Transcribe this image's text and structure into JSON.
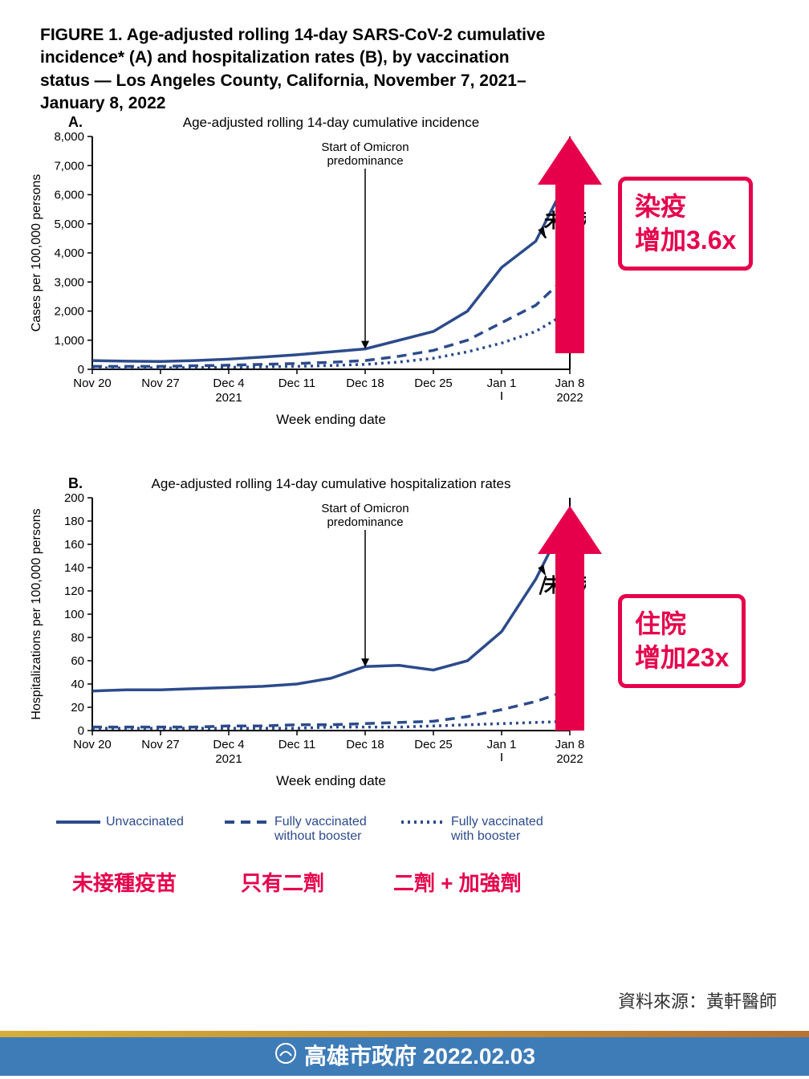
{
  "title": "FIGURE 1. Age-adjusted rolling 14-day SARS-CoV-2 cumulative incidence* (A) and hospitalization rates (B), by vaccination status — Los Angeles County, California, November 7, 2021–January 8, 2022",
  "chartA": {
    "label": "A.",
    "subtitle": "Age-adjusted rolling 14-day cumulative incidence",
    "ylabel": "Cases per 100,000 persons",
    "xlabel": "Week ending date",
    "yticks": [
      0,
      1000,
      2000,
      3000,
      4000,
      5000,
      6000,
      7000,
      8000
    ],
    "ytick_labels": [
      "0",
      "1,000",
      "2,000",
      "3,000",
      "4,000",
      "5,000",
      "6,000",
      "7,000",
      "8,000"
    ],
    "xticks": [
      "Nov 20",
      "Nov 27",
      "Dec 4",
      "Dec 11",
      "Dec 18",
      "Dec 25",
      "Jan 1",
      "Jan 8"
    ],
    "x_year_2021": "2021",
    "x_year_2022": "2022",
    "annotation": "Start of Omicron\npredominance",
    "ann_label": "未接種",
    "series": {
      "unvac": [
        300,
        280,
        270,
        300,
        350,
        420,
        500,
        600,
        700,
        1000,
        1300,
        2000,
        3500,
        4400,
        6700
      ],
      "noboost": [
        100,
        100,
        100,
        120,
        140,
        170,
        200,
        240,
        300,
        450,
        650,
        1000,
        1600,
        2200,
        3300
      ],
      "boost": [
        50,
        50,
        50,
        60,
        70,
        85,
        100,
        130,
        170,
        250,
        380,
        600,
        900,
        1300,
        2000
      ]
    },
    "colors": {
      "line": "#2c4b8c",
      "axis": "#000",
      "bg": "#fff"
    },
    "line_width": 3.5
  },
  "chartB": {
    "label": "B.",
    "subtitle": "Age-adjusted rolling 14-day cumulative hospitalization rates",
    "ylabel": "Hospitalizations per 100,000 persons",
    "xlabel": "Week ending date",
    "yticks": [
      0,
      20,
      40,
      60,
      80,
      100,
      120,
      140,
      160,
      180,
      200
    ],
    "ytick_labels": [
      "0",
      "20",
      "40",
      "60",
      "80",
      "100",
      "120",
      "140",
      "160",
      "180",
      "200"
    ],
    "xticks": [
      "Nov 20",
      "Nov 27",
      "Dec 4",
      "Dec 11",
      "Dec 18",
      "Dec 25",
      "Jan 1",
      "Jan 8"
    ],
    "x_year_2021": "2021",
    "x_year_2022": "2022",
    "annotation": "Start of Omicron\npredominance",
    "ann_label": "未接種",
    "series": {
      "unvac": [
        34,
        35,
        35,
        36,
        37,
        38,
        40,
        45,
        55,
        56,
        52,
        60,
        85,
        130,
        188
      ],
      "noboost": [
        3,
        3,
        3,
        3,
        4,
        4,
        5,
        5,
        6,
        7,
        8,
        12,
        18,
        25,
        35
      ],
      "boost": [
        2,
        2,
        2,
        2,
        2,
        2,
        2,
        3,
        3,
        3,
        4,
        5,
        6,
        7,
        8
      ]
    },
    "colors": {
      "line": "#2c4b8c",
      "axis": "#000",
      "bg": "#fff"
    },
    "line_width": 3.5
  },
  "calloutA": {
    "text": "染疫\n增加3.6x",
    "color": "#e6004c"
  },
  "calloutB": {
    "text": "住院\n增加23x",
    "color": "#e6004c"
  },
  "arrow_color": "#e6004c",
  "legend": {
    "items": [
      {
        "style": "solid",
        "en": "Unvaccinated",
        "cn": "未接種疫苗"
      },
      {
        "style": "dash",
        "en": "Fully vaccinated\nwithout booster",
        "cn": "只有二劑"
      },
      {
        "style": "dot",
        "en": "Fully vaccinated\nwith booster",
        "cn": "二劑 + 加強劑"
      }
    ],
    "cn_color": "#e6004c",
    "en_color": "#2c4b8c"
  },
  "source": "資料來源：黃軒醫師",
  "footer": "高雄市政府 2022.02.03"
}
